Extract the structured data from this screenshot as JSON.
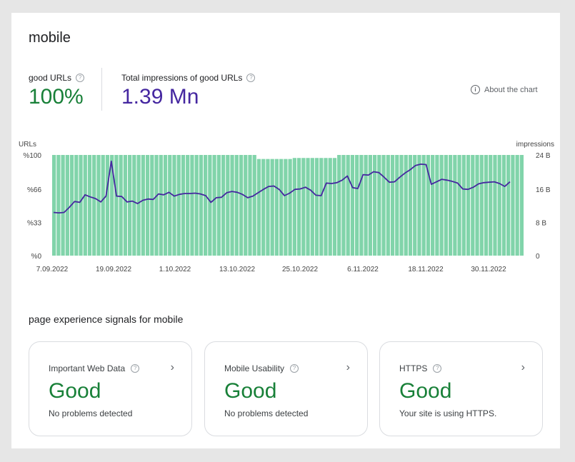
{
  "page_title": "mobile",
  "metrics": {
    "good_urls": {
      "label": "good URLs",
      "value": "100%",
      "color": "#188038"
    },
    "impressions": {
      "label": "Total impressions of good URLs",
      "value": "1.39 Mn",
      "color": "#4527a0"
    }
  },
  "about_chart": "About the chart",
  "chart_data": {
    "type": "bar+line",
    "left_axis_title": "URLs",
    "right_axis_title": "impressions",
    "left_ticks": [
      "%100",
      "%66",
      "%33",
      "%0"
    ],
    "right_ticks": [
      "24 B",
      "16 B",
      "8 B",
      "0"
    ],
    "x_labels": [
      "7.09.2022",
      "19.09.2022",
      "1.10.2022",
      "13.10.2022",
      "25.10.2022",
      "6.11.2022",
      "18.11.2022",
      "30.11.2022"
    ],
    "ylim_left": [
      0,
      100
    ],
    "ylim_right": [
      0,
      24
    ],
    "bar_color": "#81d4aa",
    "line_color": "#4527a0",
    "bars": [
      100,
      100,
      100,
      100,
      100,
      100,
      100,
      100,
      100,
      100,
      100,
      100,
      100,
      100,
      100,
      100,
      100,
      100,
      100,
      100,
      100,
      100,
      100,
      100,
      100,
      100,
      100,
      100,
      100,
      100,
      100,
      100,
      100,
      100,
      100,
      100,
      100,
      100,
      100,
      100,
      100,
      100,
      100,
      100,
      100,
      100,
      100,
      100,
      100,
      100,
      100,
      100,
      100,
      100,
      100,
      100,
      100,
      100,
      100,
      100,
      100,
      100,
      100,
      100,
      100,
      100,
      100,
      100,
      100,
      100,
      100,
      100,
      100,
      100,
      100,
      100,
      100,
      100,
      100,
      100,
      100,
      100,
      100,
      100,
      100,
      100,
      100,
      100,
      100,
      100,
      100,
      100,
      100,
      100,
      100,
      100,
      100,
      100,
      100,
      100,
      100,
      100,
      100,
      100,
      100,
      100
    ],
    "bars_partial_top": [
      96,
      96,
      96,
      96,
      96,
      96,
      96,
      96,
      97,
      97,
      97,
      97,
      97,
      97,
      97,
      97,
      97,
      97
    ],
    "impressions_series": [
      10.3,
      10.2,
      10.3,
      11.5,
      12.9,
      12.7,
      14.5,
      14.0,
      13.6,
      12.8,
      14.2,
      22.5,
      14.2,
      14.1,
      12.8,
      13.0,
      12.4,
      13.2,
      13.5,
      13.4,
      14.7,
      14.5,
      15.1,
      14.2,
      14.6,
      14.8,
      14.8,
      14.9,
      14.7,
      14.3,
      12.7,
      13.8,
      13.9,
      15.0,
      15.3,
      15.1,
      14.6,
      13.8,
      14.2,
      15.0,
      15.8,
      16.5,
      16.6,
      15.8,
      14.3,
      14.9,
      15.8,
      15.9,
      16.3,
      15.6,
      14.4,
      14.3,
      17.3,
      17.2,
      17.4,
      18.0,
      19.0,
      16.2,
      16.0,
      19.3,
      19.2,
      20.0,
      19.8,
      18.7,
      17.5,
      17.6,
      18.7,
      19.7,
      20.5,
      21.5,
      21.8,
      21.7,
      17.0,
      17.6,
      18.2,
      18.0,
      17.7,
      17.3,
      15.9,
      15.8,
      16.3,
      17.1,
      17.4,
      17.5,
      17.6,
      17.2,
      16.5,
      17.6
    ]
  },
  "signals_title": "page experience signals for mobile",
  "cards": [
    {
      "title": "Important Web Data",
      "status": "Good",
      "sub": "No problems detected"
    },
    {
      "title": "Mobile Usability",
      "status": "Good",
      "sub": "No problems detected"
    },
    {
      "title": "HTTPS",
      "status": "Good",
      "sub": "Your site is using HTTPS."
    }
  ]
}
